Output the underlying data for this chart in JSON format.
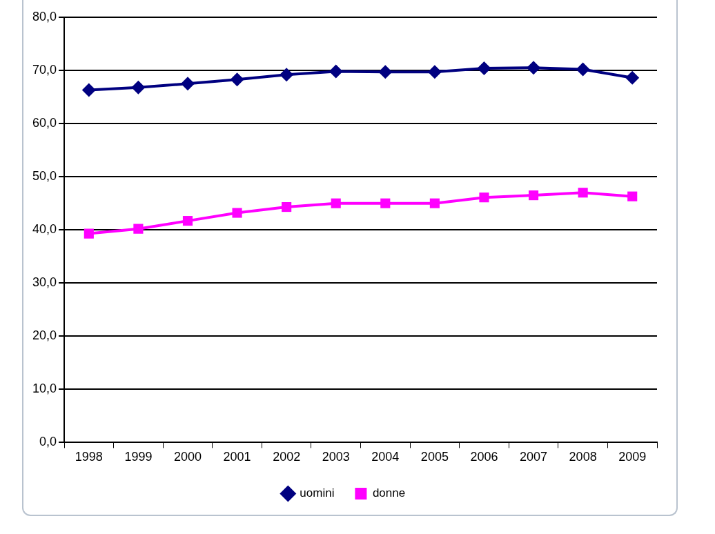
{
  "chart_data": {
    "type": "line",
    "categories": [
      "1998",
      "1999",
      "2000",
      "2001",
      "2002",
      "2003",
      "2004",
      "2005",
      "2006",
      "2007",
      "2008",
      "2009"
    ],
    "series": [
      {
        "name": "uomini",
        "color": "#000080",
        "marker": "diamond",
        "values": [
          66.3,
          66.8,
          67.5,
          68.3,
          69.2,
          69.8,
          69.7,
          69.7,
          70.4,
          70.5,
          70.2,
          68.6
        ]
      },
      {
        "name": "donne",
        "color": "#ff00ff",
        "marker": "square",
        "values": [
          39.3,
          40.2,
          41.7,
          43.2,
          44.3,
          45.0,
          45.0,
          45.0,
          46.1,
          46.5,
          47.0,
          46.3
        ]
      }
    ],
    "ylim": [
      0,
      80
    ],
    "yticks": [
      {
        "value": 0,
        "label": "0,0"
      },
      {
        "value": 10,
        "label": "10,0"
      },
      {
        "value": 20,
        "label": "20,0"
      },
      {
        "value": 30,
        "label": "30,0"
      },
      {
        "value": 40,
        "label": "40,0"
      },
      {
        "value": 50,
        "label": "50,0"
      },
      {
        "value": 60,
        "label": "60,0"
      },
      {
        "value": 70,
        "label": "70,0"
      },
      {
        "value": 80,
        "label": "80,0"
      }
    ],
    "grid": "y",
    "legend": "bottom",
    "line_style": "solid"
  }
}
